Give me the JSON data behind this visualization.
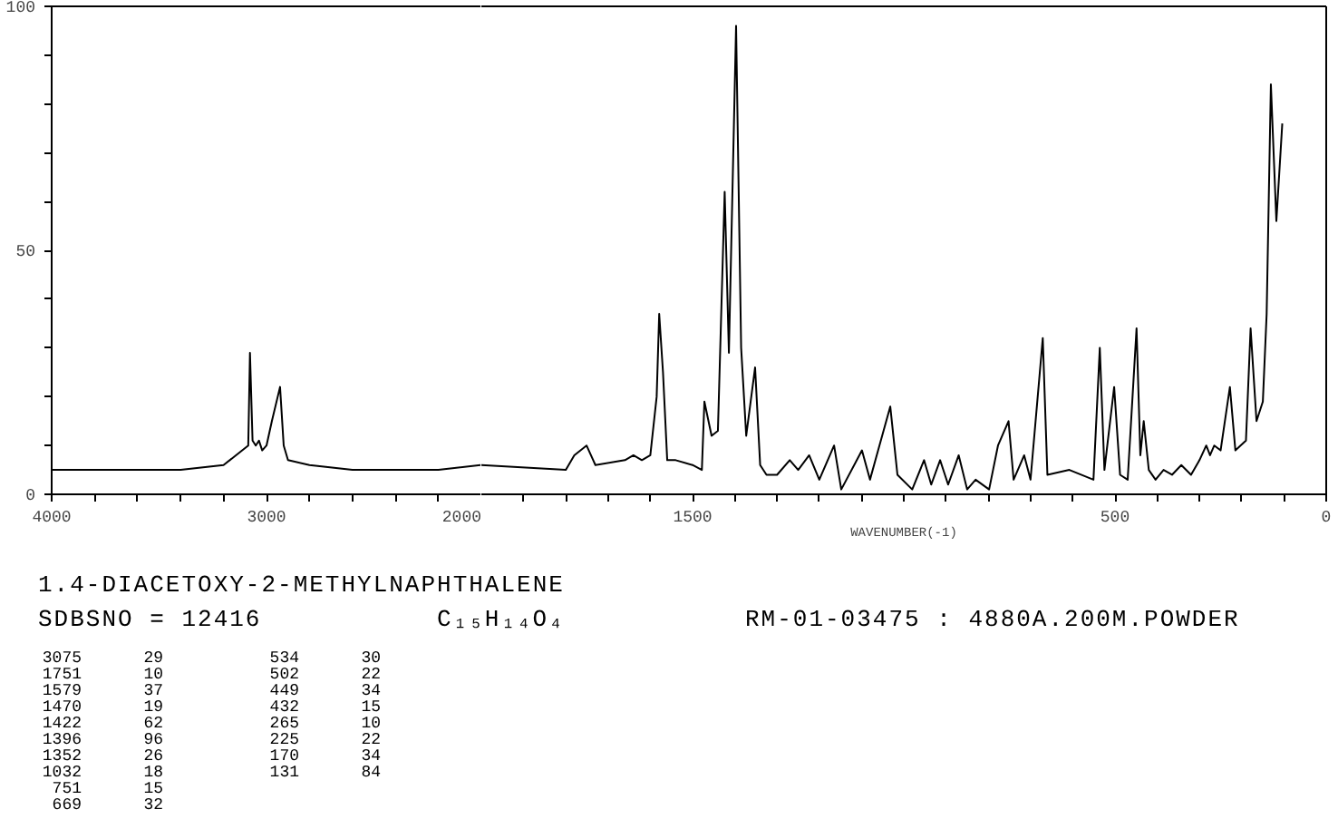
{
  "chart_data": [
    {
      "type": "line",
      "xlim": [
        4000,
        2000
      ],
      "ylim": [
        0,
        100
      ],
      "xticks": [
        4000,
        {
          "value": 3800,
          "label": null
        },
        {
          "value": 3600,
          "label": null
        },
        {
          "value": 3400,
          "label": null
        },
        {
          "value": 3200,
          "label": null
        },
        3000,
        {
          "value": 2800,
          "label": null
        },
        {
          "value": 2600,
          "label": null
        },
        {
          "value": 2400,
          "label": null
        },
        {
          "value": 2200,
          "label": null
        },
        2000
      ],
      "yticks": [
        0,
        {
          "value": 10,
          "label": null
        },
        {
          "value": 20,
          "label": null
        },
        {
          "value": 30,
          "label": null
        },
        {
          "value": 40,
          "label": null
        },
        50,
        {
          "value": 60,
          "label": null
        },
        {
          "value": 70,
          "label": null
        },
        {
          "value": 80,
          "label": null
        },
        {
          "value": 90,
          "label": null
        },
        100
      ],
      "x": [
        4000,
        3800,
        3600,
        3400,
        3200,
        3113,
        3085,
        3077,
        3065,
        3050,
        3035,
        3020,
        3000,
        2975,
        2937,
        2920,
        2900,
        2800,
        2600,
        2400,
        2200,
        2000
      ],
      "series": [
        {
          "color": "#000000",
          "values": [
            5,
            5,
            5,
            5,
            6,
            9,
            10,
            29,
            11,
            10,
            11,
            9,
            10,
            15,
            22,
            10,
            7,
            6,
            5,
            5,
            5,
            6
          ]
        }
      ],
      "annotations": [
        "1.4-DIACETOXY-2-METHYLNAPHTHALENE",
        "SDBSNO = 12416",
        "C₁₅H₁₄O₄",
        "RM-01-03475 : 4880A.200M.POWDER",
        "3075 29",
        "1751 10",
        "1579 37",
        "1470 19",
        "1422 62",
        "1396 96",
        "1352 26",
        "1032 18",
        "751 15",
        "669 32",
        "534 30",
        "502 22",
        "449 34",
        "432 15",
        "265 10",
        "225 22",
        "170 34",
        "131 84"
      ]
    },
    {
      "type": "line",
      "xlim": [
        2000,
        0
      ],
      "ylim": [
        0,
        100
      ],
      "tick_labels": "x",
      "xlabel": "WAVENUMBER(-1)",
      "xticks": [
        {
          "value": 1900,
          "label": null
        },
        {
          "value": 1800,
          "label": null
        },
        {
          "value": 1700,
          "label": null
        },
        {
          "value": 1600,
          "label": null
        },
        1500,
        {
          "value": 1400,
          "label": null
        },
        {
          "value": 1300,
          "label": null
        },
        {
          "value": 1200,
          "label": null
        },
        {
          "value": 1100,
          "label": null
        },
        {
          "value": 1000,
          "label": null
        },
        {
          "value": 900,
          "label": null
        },
        {
          "value": 800,
          "label": null
        },
        {
          "value": 700,
          "label": null
        },
        {
          "value": 600,
          "label": null
        },
        500,
        {
          "value": 400,
          "label": null
        },
        {
          "value": 300,
          "label": null
        },
        {
          "value": 200,
          "label": null
        },
        {
          "value": 100,
          "label": null
        },
        0
      ],
      "x": [
        2000,
        1800,
        1780,
        1751,
        1730,
        1660,
        1640,
        1620,
        1600,
        1585,
        1579,
        1570,
        1560,
        1540,
        1500,
        1478,
        1472,
        1455,
        1440,
        1424,
        1414,
        1397,
        1385,
        1373,
        1352,
        1340,
        1325,
        1300,
        1270,
        1250,
        1224,
        1200,
        1165,
        1148,
        1099,
        1080,
        1032,
        1015,
        980,
        952,
        935,
        914,
        895,
        870,
        850,
        830,
        798,
        777,
        752,
        740,
        715,
        700,
        671,
        660,
        608,
        551,
        536,
        525,
        502,
        488,
        470,
        449,
        440,
        432,
        420,
        404,
        385,
        365,
        343,
        320,
        300,
        284,
        275,
        265,
        250,
        228,
        215,
        190,
        179,
        165,
        150,
        141,
        131,
        118,
        104
      ],
      "series": [
        {
          "color": "#000000",
          "values": [
            6,
            5,
            8,
            10,
            6,
            7,
            8,
            7,
            8,
            20,
            37,
            25,
            7,
            7,
            6,
            5,
            19,
            12,
            13,
            62,
            29,
            96,
            30,
            12,
            26,
            6,
            4,
            4,
            7,
            5,
            8,
            3,
            10,
            1,
            9,
            3,
            18,
            4,
            1,
            7,
            2,
            7,
            2,
            8,
            1,
            3,
            1,
            10,
            15,
            3,
            8,
            3,
            32,
            4,
            5,
            3,
            30,
            5,
            22,
            4,
            3,
            34,
            8,
            15,
            5,
            3,
            5,
            4,
            6,
            4,
            7,
            10,
            8,
            10,
            9,
            22,
            9,
            11,
            34,
            15,
            19,
            37,
            84,
            56,
            76
          ]
        }
      ]
    }
  ]
}
